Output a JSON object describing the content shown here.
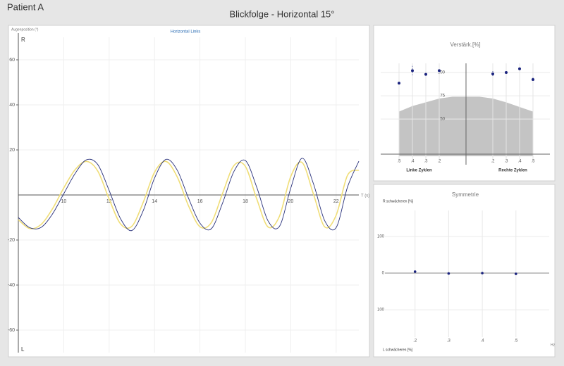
{
  "header": {
    "patient": "Patient A",
    "title": "Blickfolge - Horizontal 15°"
  },
  "chart_data": [
    {
      "type": "line",
      "title": "Horizontal Links",
      "y_label": "Augenposition (°)",
      "x_label": "T (s)",
      "top_label": "R",
      "bottom_label": "L",
      "x": [
        8,
        8.5,
        9,
        9.5,
        10,
        10.5,
        11,
        11.5,
        12,
        12.5,
        13,
        13.5,
        14,
        14.5,
        15,
        15.5,
        16,
        16.5,
        17,
        17.5,
        18,
        18.5,
        19,
        19.5,
        20,
        20.5,
        21,
        21.5,
        22,
        22.5,
        23
      ],
      "series": [
        {
          "color": "#f0de78",
          "values": [
            -11,
            -14.9,
            -13.1,
            -6.2,
            3.1,
            11.2,
            14.9,
            10.6,
            -1.8,
            -12.8,
            -13.9,
            -3.3,
            10.1,
            14.9,
            8,
            -4.9,
            -14.1,
            -12.3,
            0.8,
            13.1,
            12.7,
            -1.7,
            -14.2,
            -9.5,
            8.2,
            14.4,
            0.4,
            -14.2,
            -9,
            8.7,
            11
          ]
        },
        {
          "color": "#28307a",
          "values": [
            -10,
            -14.5,
            -14.4,
            -8.5,
            0.5,
            9.5,
            15.6,
            13.5,
            2,
            -10.5,
            -15.8,
            -7,
            7.5,
            15.8,
            11,
            -1.5,
            -12.5,
            -15,
            -3.5,
            10.5,
            15.3,
            3.5,
            -11.5,
            -14,
            3,
            16.3,
            5,
            -11.5,
            -14.5,
            3.5,
            15
          ]
        }
      ],
      "xlim": [
        8,
        23
      ],
      "xticks": [
        10,
        12,
        14,
        16,
        18,
        20,
        22
      ],
      "ylim": [
        -70,
        70
      ],
      "yticks": [
        -60,
        -40,
        -20,
        20,
        40,
        60
      ],
      "grid": true
    },
    {
      "type": "errorbar",
      "title": "Verstärk.[%]",
      "group_labels": [
        "Linke Zyklen",
        "Rechte Zyklen"
      ],
      "x": [
        -0.5,
        -0.4,
        -0.3,
        -0.2,
        0.2,
        0.3,
        0.4,
        0.5
      ],
      "values": [
        88.6,
        102,
        98,
        102,
        98.5,
        100,
        104,
        92.5
      ],
      "errors": [
        1,
        5,
        1,
        1,
        3,
        1,
        1,
        2
      ],
      "color": "#1a237e",
      "area": {
        "x": [
          -0.5,
          -0.4,
          -0.3,
          -0.2,
          -0.1,
          0,
          0.1,
          0.2,
          0.3,
          0.4,
          0.5
        ],
        "values": [
          58,
          64,
          68,
          72,
          74,
          74,
          74,
          72,
          68,
          63,
          58
        ],
        "color": "#c4c4c4"
      },
      "xlim": [
        -0.6,
        0.6
      ],
      "xticks": [
        {
          "value": -0.5,
          "label": ".5"
        },
        {
          "value": -0.4,
          "label": ".4"
        },
        {
          "value": -0.3,
          "label": ".3"
        },
        {
          "value": -0.2,
          "label": ".2"
        },
        {
          "value": 0.2,
          "label": ".2"
        },
        {
          "value": 0.3,
          "label": ".3"
        },
        {
          "value": 0.4,
          "label": ".4"
        },
        {
          "value": 0.5,
          "label": ".5"
        }
      ],
      "ylim": [
        10,
        125
      ],
      "yticks": [
        50,
        75,
        100
      ],
      "grid": true
    },
    {
      "type": "scatter",
      "title": "Symmetrie",
      "y_label_top": "R schwächeren [%]",
      "y_label_bottom": "L schwächeren [%]",
      "x_label": "Hz",
      "x": [
        0.2,
        0.3,
        0.4,
        0.5
      ],
      "values": [
        4,
        -1,
        0,
        -2
      ],
      "color": "#1a237e",
      "xlim": [
        0.1,
        0.6
      ],
      "xticks": [
        {
          "value": 0.2,
          "label": ".2"
        },
        {
          "value": 0.3,
          "label": ".3"
        },
        {
          "value": 0.4,
          "label": ".4"
        },
        {
          "value": 0.5,
          "label": ".5"
        }
      ],
      "ylim": [
        -190,
        190
      ],
      "yticks": [
        {
          "value": -100,
          "label": "100"
        },
        0,
        100
      ],
      "grid": true
    }
  ]
}
